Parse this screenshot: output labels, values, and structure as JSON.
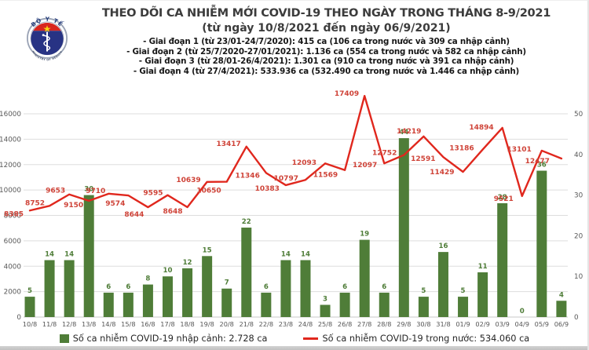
{
  "header": {
    "title": "THEO DÕI CA NHIỄM MỚI COVID-19 THEO NGÀY TRONG THÁNG 8-9/2021",
    "subtitle": "(từ ngày 10/8/2021 đến ngày 06/9/2021)",
    "bullets": [
      "- Giai đoạn 1 (từ 23/01-24/7/2020): 415 ca (106 ca trong nước và 309 ca nhập cảnh)",
      "- Giai đoạn 2 (từ 25/7/2020-27/01/2021): 1.136 ca (554 ca trong nước và 582 ca nhập cảnh)",
      "- Giai đoạn 3 (từ 28/01-26/4/2021): 1.301 ca (910 ca trong nước và 391 ca nhập cảnh)",
      "- Giai đoạn 4 (từ 27/4/2021): 533.936 ca (532.490 ca trong nước và 1.446 ca nhập cảnh)"
    ],
    "logo": {
      "top_text": "BỘ Y TẾ",
      "bottom_text": "MINISTRY OF HEALTH"
    }
  },
  "chart_data": {
    "type": "combo-bar-line",
    "categories": [
      "10/8",
      "11/8",
      "12/8",
      "13/8",
      "14/8",
      "15/8",
      "16/8",
      "17/8",
      "18/8",
      "19/8",
      "20/8",
      "21/8",
      "22/8",
      "23/8",
      "24/8",
      "25/8",
      "26/8",
      "27/8",
      "28/8",
      "29/8",
      "30/8",
      "31/8",
      "01/9",
      "02/9",
      "03/9",
      "04/9",
      "05/9",
      "06/9"
    ],
    "series": [
      {
        "name": "Số ca nhiễm COVID-19 nhập cảnh",
        "type": "bar",
        "axis": "right",
        "color": "#4f7d38",
        "label_color": "#4f7d38",
        "values": [
          5,
          14,
          14,
          30,
          6,
          6,
          8,
          10,
          12,
          15,
          7,
          22,
          6,
          14,
          14,
          3,
          6,
          19,
          6,
          44,
          5,
          16,
          5,
          11,
          28,
          0,
          36,
          4
        ]
      },
      {
        "name": "Số ca nhiễm COVID-19 trong nước",
        "type": "line",
        "axis": "left",
        "color": "#e0271d",
        "label_color": "#cf4338",
        "values": [
          8385,
          8752,
          9653,
          9150,
          9710,
          9574,
          8644,
          9595,
          8648,
          10639,
          10650,
          13417,
          11346,
          10383,
          10797,
          12093,
          11569,
          17409,
          12097,
          12752,
          14219,
          12591,
          11429,
          13186,
          14894,
          9521,
          13101,
          12477
        ]
      }
    ],
    "left_axis": {
      "min": 0,
      "max": 16000,
      "step": 2000,
      "ticks": [
        "0",
        "2000",
        "4000",
        "6000",
        "8000",
        "10000",
        "12000",
        "14000",
        "16000"
      ]
    },
    "right_axis": {
      "min": 0,
      "max": 50,
      "step": 10,
      "ticks": [
        "0",
        "10",
        "20",
        "30",
        "40",
        "50"
      ]
    },
    "grid": true,
    "legend_position": "bottom",
    "gridline_color": "#dddddd",
    "axis_text_color": "#595959"
  },
  "legend": {
    "bar_label": "Số ca nhiễm COVID-19 nhập cảnh: 2.728 ca",
    "line_label": "Số ca nhiễm COVID-19 trong nước: 534.060 ca"
  }
}
